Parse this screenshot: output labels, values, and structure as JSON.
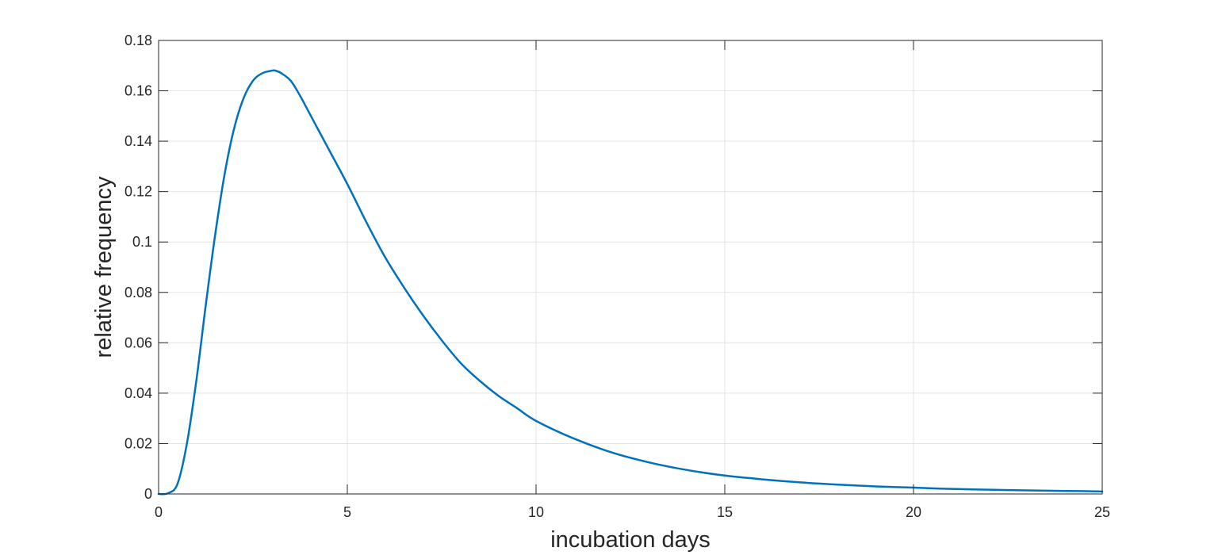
{
  "chart_data": {
    "type": "line",
    "title": "",
    "xlabel": "incubation days",
    "ylabel": "relative frequency",
    "xlim": [
      0,
      25
    ],
    "ylim": [
      0,
      0.18
    ],
    "xticks": [
      0,
      5,
      10,
      15,
      20,
      25
    ],
    "xtick_labels": [
      "0",
      "5",
      "10",
      "15",
      "20",
      "25"
    ],
    "yticks": [
      0,
      0.02,
      0.04,
      0.06,
      0.08,
      0.1,
      0.12,
      0.14,
      0.16,
      0.18
    ],
    "ytick_labels": [
      "0",
      "0.02",
      "0.04",
      "0.06",
      "0.08",
      "0.1",
      "0.12",
      "0.14",
      "0.16",
      "0.18"
    ],
    "grid": true,
    "line_color": "#0072BD",
    "series": [
      {
        "x": [
          0,
          0.25,
          0.5,
          0.75,
          1.0,
          1.25,
          1.5,
          1.75,
          2.0,
          2.25,
          2.5,
          2.75,
          3.0,
          3.1,
          3.25,
          3.5,
          3.75,
          4.0,
          4.5,
          5.0,
          5.5,
          6.0,
          6.5,
          7.0,
          7.5,
          8.0,
          8.5,
          9.0,
          9.5,
          10.0,
          11.0,
          12.0,
          13.0,
          14.0,
          15.0,
          16.0,
          17.0,
          18.0,
          19.0,
          20.0,
          21.0,
          22.0,
          23.0,
          24.0,
          25.0
        ],
        "y": [
          0,
          0.0003,
          0.004,
          0.02,
          0.045,
          0.075,
          0.103,
          0.127,
          0.145,
          0.157,
          0.164,
          0.167,
          0.168,
          0.168,
          0.167,
          0.164,
          0.158,
          0.151,
          0.137,
          0.123,
          0.108,
          0.094,
          0.082,
          0.071,
          0.061,
          0.052,
          0.045,
          0.039,
          0.034,
          0.029,
          0.022,
          0.0165,
          0.0125,
          0.0095,
          0.0073,
          0.0058,
          0.0046,
          0.0037,
          0.003,
          0.0025,
          0.002,
          0.0017,
          0.0014,
          0.0012,
          0.001
        ]
      }
    ]
  }
}
